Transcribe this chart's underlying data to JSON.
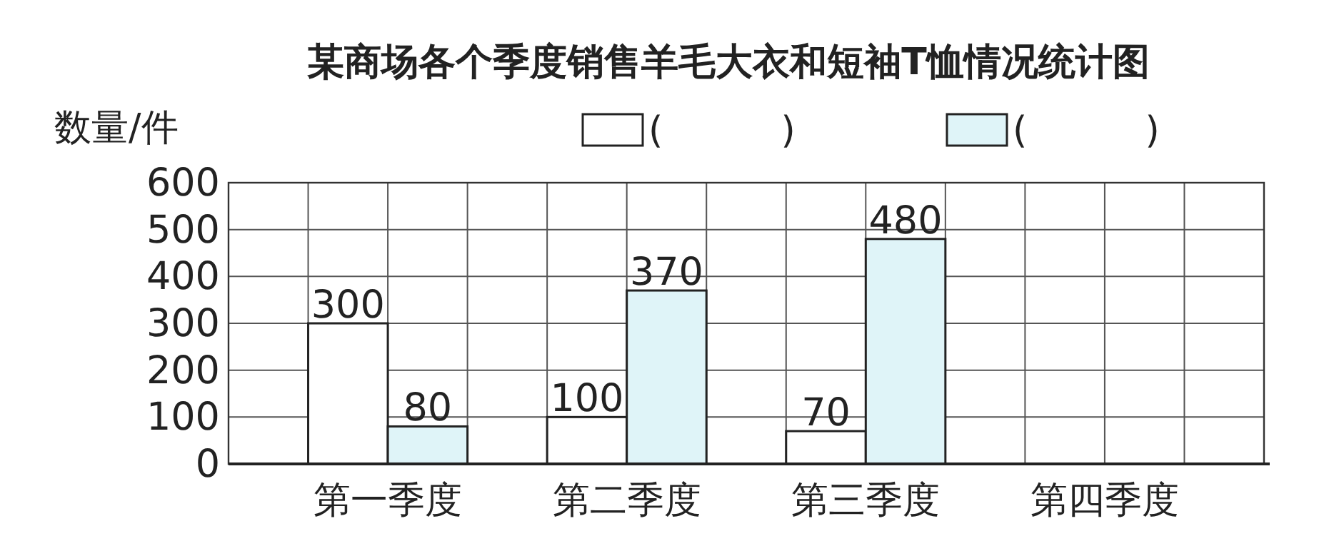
{
  "chart_data": {
    "type": "bar",
    "title": "某商场各个季度销售羊毛大衣和短袖T恤情况统计图",
    "ylabel": "数量/件",
    "categories": [
      "第一季度",
      "第二季度",
      "第三季度",
      "第四季度"
    ],
    "series": [
      {
        "name": "(          )",
        "color": "#ffffff",
        "values": [
          300,
          100,
          70,
          null
        ]
      },
      {
        "name": "(          )",
        "color": "#dff4f8",
        "values": [
          80,
          370,
          480,
          null
        ]
      }
    ],
    "ylim": [
      0,
      600
    ],
    "yticks": [
      0,
      100,
      200,
      300,
      400,
      500,
      600
    ],
    "grid": true,
    "legend": "top right",
    "data_labels": true
  }
}
